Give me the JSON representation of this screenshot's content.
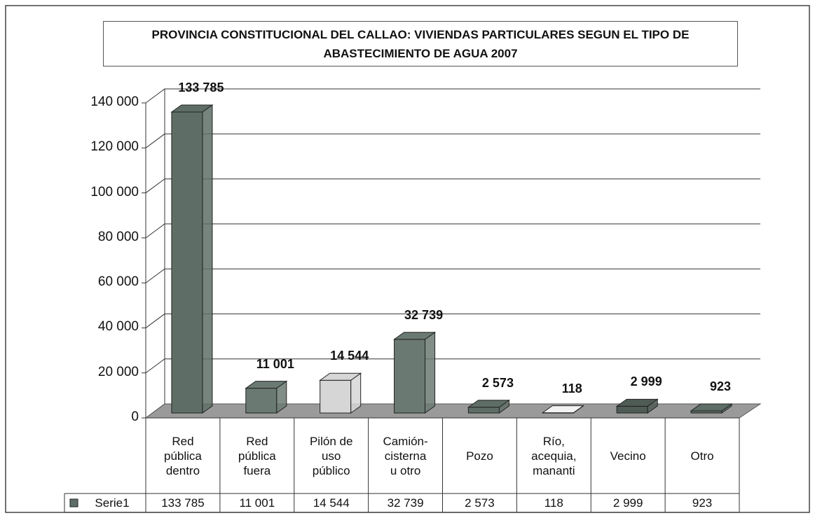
{
  "chart_data": {
    "type": "bar3d",
    "title": "PROVINCIA CONSTITUCIONAL DEL CALLAO: VIVIENDAS PARTICULARES SEGUN EL TIPO DE ABASTECIMIENTO DE AGUA 2007",
    "categories": [
      "Red\npública\ndentro",
      "Red\npública\nfuera",
      "Pilón de\nuso\npúblico",
      "Camión-\ncisterna\nu otro",
      "Pozo",
      "Río,\nacequia,\nmananti",
      "Vecino",
      "Otro"
    ],
    "series": [
      {
        "name": "Serie1",
        "color": "#5e6e66",
        "values": [
          133785,
          11001,
          14544,
          32739,
          2573,
          118,
          2999,
          923
        ],
        "value_labels": [
          "133 785",
          "11 001",
          "14 544",
          "32 739",
          "2 573",
          "118",
          "2 999",
          "923"
        ],
        "colors": [
          "#5e6e66",
          "#6a7a72",
          "#d6d6d6",
          "#6a7a72",
          "#5e6e66",
          "#f2f2f2",
          "#4f5c56",
          "#5e6e66"
        ]
      }
    ],
    "ylim": [
      0,
      140000
    ],
    "yticks": [
      0,
      {
        "value": 20000,
        "label": "20 000"
      },
      {
        "value": 40000,
        "label": "40 000"
      },
      {
        "value": 60000,
        "label": "60 000"
      },
      {
        "value": 80000,
        "label": "80 000"
      },
      {
        "value": 100000,
        "label": "100 000"
      },
      {
        "value": 120000,
        "label": "120 000"
      },
      {
        "value": 140000,
        "label": "140 000"
      }
    ],
    "grid": true,
    "data_table": true
  }
}
